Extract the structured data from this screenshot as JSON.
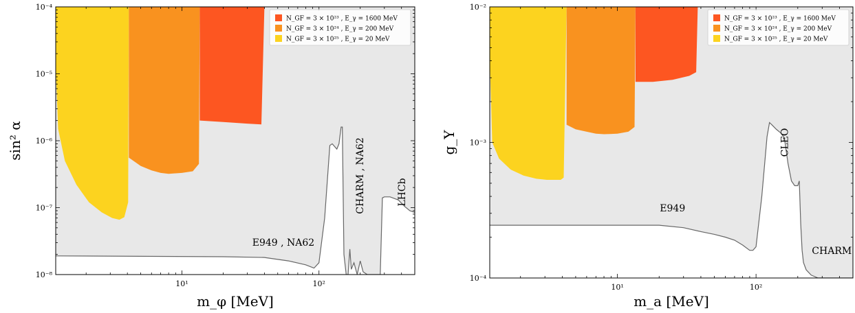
{
  "chart_data": [
    {
      "type": "area",
      "xlabel": "m_φ [MeV]",
      "ylabel": "sin² α",
      "xscale": "log",
      "yscale": "log",
      "xlim": [
        1.2,
        500
      ],
      "ylim": [
        1e-08,
        0.0001
      ],
      "grid": false,
      "legend_position": "top-right",
      "x_ticks": [
        {
          "value": 10,
          "label": "10¹"
        },
        {
          "value": 100,
          "label": "10²"
        }
      ],
      "y_ticks": [
        {
          "value": 1e-08,
          "label": "10⁻⁸"
        },
        {
          "value": 1e-07,
          "label": "10⁻⁷"
        },
        {
          "value": 1e-06,
          "label": "10⁻⁶"
        },
        {
          "value": 1e-05,
          "label": "10⁻⁵"
        },
        {
          "value": 0.0001,
          "label": "10⁻⁴"
        }
      ],
      "series": [
        {
          "name": "N_GF = 3 × 10²³ , E_γ = 1600 MeV",
          "color": "#fd5621",
          "region": "band",
          "x": [
            13.5,
            20,
            30,
            38,
            40
          ],
          "lower": [
            2e-06,
            1.9e-06,
            1.8e-06,
            1.75e-06,
            0.0001
          ]
        },
        {
          "name": "N_GF = 3 × 10²⁴ , E_γ = 200 MeV",
          "color": "#f9921f",
          "region": "band",
          "x": [
            4.1,
            5,
            6,
            7,
            8,
            10,
            12,
            13.3,
            13.5
          ],
          "lower": [
            5.6e-07,
            4.2e-07,
            3.6e-07,
            3.3e-07,
            3.2e-07,
            3.3e-07,
            3.5e-07,
            4.5e-07,
            0.0001
          ]
        },
        {
          "name": "N_GF = 3 × 10²⁵ , E_γ = 20 MeV",
          "color": "#fcd31f",
          "region": "band",
          "x": [
            1.2,
            1.25,
            1.4,
            1.7,
            2.1,
            2.6,
            3.1,
            3.5,
            3.8,
            4.05,
            4.1
          ],
          "lower": [
            1.2e-05,
            1.5e-06,
            5e-07,
            2.2e-07,
            1.2e-07,
            8.5e-08,
            7e-08,
            6.6e-08,
            7.2e-08,
            1.2e-07,
            0.0001
          ]
        }
      ],
      "excluded_region": {
        "color": "#e8e8e8",
        "boundary_x": [
          1.2,
          20,
          40,
          60,
          80,
          92,
          100,
          110,
          120,
          125,
          135,
          140,
          145,
          148,
          152,
          158,
          163,
          168,
          172,
          180,
          190,
          200,
          210,
          225,
          240,
          255,
          270,
          280,
          290,
          300,
          330,
          380,
          420,
          460,
          500
        ],
        "boundary_y": [
          1.9e-08,
          1.85e-08,
          1.8e-08,
          1.6e-08,
          1.4e-08,
          1.25e-08,
          1.5e-08,
          7e-08,
          8.5e-07,
          9e-07,
          7.5e-07,
          9e-07,
          1.6e-06,
          1.6e-06,
          2e-08,
          1e-08,
          1e-08,
          2.4e-08,
          1.2e-08,
          1.5e-08,
          1e-08,
          1.6e-08,
          1.1e-08,
          1e-08,
          1e-08,
          1e-08,
          1e-08,
          1e-08,
          1.4e-07,
          1.45e-07,
          1.45e-07,
          1.3e-07,
          1.05e-07,
          9e-08,
          8.5e-08
        ]
      },
      "annotations": [
        {
          "text": "E949 , NA62",
          "x": 55,
          "y": 2.7e-08,
          "rotation": 0
        },
        {
          "text": "CHARM , NA62",
          "x": 210,
          "y": 3e-07,
          "rotation": -90
        },
        {
          "text": "LHCb",
          "x": 425,
          "y": 1.7e-07,
          "rotation": -90
        }
      ]
    },
    {
      "type": "area",
      "xlabel": "m_a [MeV]",
      "ylabel": "g_Y",
      "xscale": "log",
      "yscale": "log",
      "xlim": [
        1.2,
        500
      ],
      "ylim": [
        0.0001,
        0.01
      ],
      "grid": false,
      "legend_position": "top-right",
      "x_ticks": [
        {
          "value": 10,
          "label": "10¹"
        },
        {
          "value": 100,
          "label": "10²"
        }
      ],
      "y_ticks": [
        {
          "value": 0.0001,
          "label": "10⁻⁴"
        },
        {
          "value": 0.001,
          "label": "10⁻³"
        },
        {
          "value": 0.01,
          "label": "10⁻²"
        }
      ],
      "series": [
        {
          "name": "N_GF = 3 × 10²³ , E_γ = 1600 MeV",
          "color": "#fd5621",
          "region": "band",
          "x": [
            13.5,
            18,
            25,
            33,
            37,
            38
          ],
          "lower": [
            0.0028,
            0.0028,
            0.0029,
            0.0031,
            0.0033,
            0.01
          ]
        },
        {
          "name": "N_GF = 3 × 10²⁴ , E_γ = 200 MeV",
          "color": "#f9921f",
          "region": "band",
          "x": [
            4.3,
            5,
            6,
            7,
            8,
            10,
            12,
            13.3,
            13.5
          ],
          "lower": [
            0.00135,
            0.00125,
            0.0012,
            0.00116,
            0.00115,
            0.00116,
            0.0012,
            0.0013,
            0.01
          ]
        },
        {
          "name": "N_GF = 3 × 10²⁵ , E_γ = 20 MeV",
          "color": "#fcd31f",
          "region": "band",
          "x": [
            1.2,
            1.25,
            1.4,
            1.7,
            2.1,
            2.6,
            3.1,
            3.5,
            3.9,
            4.1,
            4.3
          ],
          "lower": [
            0.0042,
            0.001,
            0.00076,
            0.00063,
            0.00057,
            0.00054,
            0.00053,
            0.00053,
            0.00053,
            0.00055,
            0.01
          ]
        }
      ],
      "excluded_region": {
        "color": "#e8e8e8",
        "boundary_x": [
          1.2,
          10,
          20,
          30,
          40,
          50,
          60,
          70,
          80,
          90,
          95,
          100,
          110,
          120,
          125,
          130,
          140,
          150,
          160,
          170,
          180,
          190,
          200,
          205,
          210,
          215,
          220,
          230,
          250,
          280,
          320,
          360,
          400,
          440,
          480,
          500
        ],
        "boundary_y": [
          0.000245,
          0.000245,
          0.000245,
          0.000235,
          0.00022,
          0.00021,
          0.0002,
          0.00019,
          0.000175,
          0.00016,
          0.00016,
          0.00017,
          0.0004,
          0.0011,
          0.0014,
          0.00135,
          0.00125,
          0.00118,
          0.00108,
          0.0007,
          0.00052,
          0.00048,
          0.00048,
          0.00052,
          0.00025,
          0.00016,
          0.00013,
          0.000115,
          0.000105,
          0.0001,
          0.0001,
          0.0001,
          0.0001,
          0.0001,
          0.0001,
          0.0001
        ]
      },
      "annotations": [
        {
          "text": "E949",
          "x": 25,
          "y": 0.00031,
          "rotation": 0
        },
        {
          "text": "CLEO",
          "x": 170,
          "y": 0.001,
          "rotation": -90
        },
        {
          "text": "CHARM",
          "x": 490,
          "y": 0.00015,
          "rotation": 0,
          "anchor": "end"
        }
      ]
    }
  ]
}
